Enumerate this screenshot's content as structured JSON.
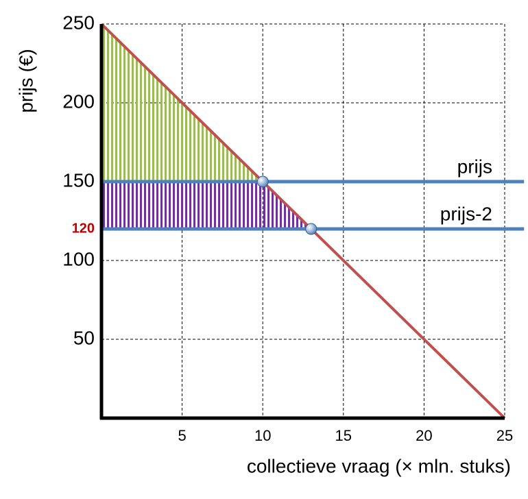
{
  "chart_data": {
    "type": "line",
    "ylabel": "prijs (€)",
    "xlabel": "collectieve vraag (× mln. stuks)",
    "xlim": [
      0,
      25
    ],
    "ylim": [
      0,
      250
    ],
    "xticks": [
      5,
      10,
      15,
      20,
      25
    ],
    "yticks": [
      50,
      100,
      150,
      200,
      250
    ],
    "extra_yticks": [
      120
    ],
    "extra_ytick_color": "#c00000",
    "grid": true,
    "series": [
      {
        "color": "#c0504d",
        "x": [
          0,
          25
        ],
        "values": [
          250,
          0
        ]
      },
      {
        "name": "prijs",
        "color": "#4f81bd",
        "x": [
          0,
          26.2
        ],
        "values": [
          150,
          150
        ]
      },
      {
        "name": "prijs-2",
        "color": "#4f81bd",
        "x": [
          0,
          26.2
        ],
        "values": [
          120,
          120
        ]
      }
    ],
    "points": {
      "color": "#4f81bd",
      "x": [
        10,
        13
      ],
      "y": [
        150,
        120
      ]
    },
    "area_colors": [
      "#9bbb59",
      "#7030a0"
    ]
  }
}
